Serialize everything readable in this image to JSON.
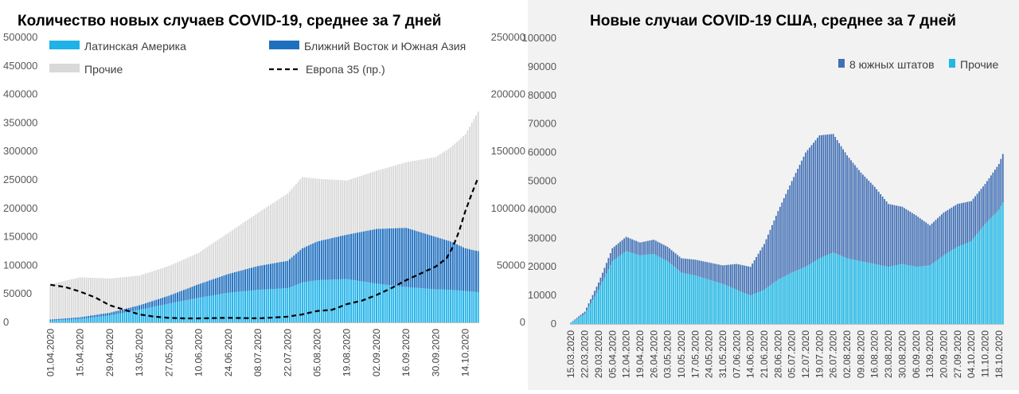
{
  "chart_data": [
    {
      "type": "bar",
      "title": "Количество новых случаев COVID-19, среднее за 7 дней",
      "stacked": true,
      "x_ticks": [
        "01.04.2020",
        "15.04.2020",
        "29.04.2020",
        "13.05.2020",
        "27.05.2020",
        "10.06.2020",
        "24.06.2020",
        "08.07.2020",
        "22.07.2020",
        "05.08.2020",
        "19.08.2020",
        "02.09.2020",
        "16.09.2020",
        "30.09.2020",
        "14.10.2020"
      ],
      "x_start": "01.04.2020",
      "x_end": "20.10.2020",
      "ylim": [
        0,
        500000
      ],
      "y_ticks": [
        0,
        50000,
        100000,
        150000,
        200000,
        250000,
        300000,
        350000,
        400000,
        450000,
        500000
      ],
      "y2lim": [
        0,
        250000
      ],
      "y2_ticks": [
        0,
        50000,
        100000,
        150000,
        200000,
        250000
      ],
      "legend": [
        "Латинская Америка",
        "Ближний Восток и Южная Азия",
        "Прочие",
        "Европа 35 (пр.)"
      ],
      "series": [
        {
          "name": "Латинская Америка",
          "color": "#1fb2e8",
          "axis": "left",
          "kind": "bar",
          "points": [
            [
              "01.04.2020",
              3000
            ],
            [
              "15.04.2020",
              6000
            ],
            [
              "29.04.2020",
              12000
            ],
            [
              "13.05.2020",
              22000
            ],
            [
              "27.05.2020",
              33000
            ],
            [
              "10.06.2020",
              43000
            ],
            [
              "24.06.2020",
              52000
            ],
            [
              "08.07.2020",
              57000
            ],
            [
              "22.07.2020",
              60000
            ],
            [
              "29.07.2020",
              70000
            ],
            [
              "05.08.2020",
              74000
            ],
            [
              "19.08.2020",
              76000
            ],
            [
              "02.09.2020",
              68000
            ],
            [
              "16.09.2020",
              62000
            ],
            [
              "30.09.2020",
              58000
            ],
            [
              "07.10.2020",
              57000
            ],
            [
              "14.10.2020",
              55000
            ],
            [
              "20.10.2020",
              53000
            ]
          ]
        },
        {
          "name": "Ближний Восток и Южная Азия",
          "color": "#1f6fbf",
          "axis": "left",
          "kind": "bar",
          "points": [
            [
              "01.04.2020",
              2000
            ],
            [
              "15.04.2020",
              3000
            ],
            [
              "29.04.2020",
              5000
            ],
            [
              "13.05.2020",
              8000
            ],
            [
              "27.05.2020",
              14000
            ],
            [
              "10.06.2020",
              24000
            ],
            [
              "24.06.2020",
              33000
            ],
            [
              "08.07.2020",
              42000
            ],
            [
              "22.07.2020",
              48000
            ],
            [
              "29.07.2020",
              60000
            ],
            [
              "05.08.2020",
              68000
            ],
            [
              "19.08.2020",
              78000
            ],
            [
              "02.09.2020",
              96000
            ],
            [
              "16.09.2020",
              104000
            ],
            [
              "30.09.2020",
              92000
            ],
            [
              "07.10.2020",
              85000
            ],
            [
              "14.10.2020",
              75000
            ],
            [
              "20.10.2020",
              72000
            ]
          ]
        },
        {
          "name": "Прочие",
          "color": "#d9d9d9",
          "axis": "left",
          "kind": "bar",
          "points": [
            [
              "01.04.2020",
              62000
            ],
            [
              "15.04.2020",
              70000
            ],
            [
              "29.04.2020",
              60000
            ],
            [
              "13.05.2020",
              52000
            ],
            [
              "27.05.2020",
              52000
            ],
            [
              "10.06.2020",
              55000
            ],
            [
              "24.06.2020",
              72000
            ],
            [
              "08.07.2020",
              93000
            ],
            [
              "22.07.2020",
              118000
            ],
            [
              "29.07.2020",
              125000
            ],
            [
              "05.08.2020",
              110000
            ],
            [
              "19.08.2020",
              95000
            ],
            [
              "02.09.2020",
              102000
            ],
            [
              "16.09.2020",
              115000
            ],
            [
              "30.09.2020",
              140000
            ],
            [
              "07.10.2020",
              165000
            ],
            [
              "14.10.2020",
              200000
            ],
            [
              "20.10.2020",
              245000
            ]
          ]
        },
        {
          "name": "Европа 35 (пр.)",
          "color": "#000000",
          "axis": "right",
          "kind": "line",
          "dash": true,
          "points": [
            [
              "01.04.2020",
              33000
            ],
            [
              "08.04.2020",
              31000
            ],
            [
              "15.04.2020",
              27000
            ],
            [
              "22.04.2020",
              22000
            ],
            [
              "29.04.2020",
              15000
            ],
            [
              "06.05.2020",
              11000
            ],
            [
              "13.05.2020",
              7000
            ],
            [
              "20.05.2020",
              5000
            ],
            [
              "27.05.2020",
              4000
            ],
            [
              "03.06.2020",
              3500
            ],
            [
              "10.06.2020",
              3500
            ],
            [
              "24.06.2020",
              4000
            ],
            [
              "08.07.2020",
              3500
            ],
            [
              "22.07.2020",
              5000
            ],
            [
              "29.07.2020",
              7000
            ],
            [
              "05.08.2020",
              10000
            ],
            [
              "12.08.2020",
              11000
            ],
            [
              "19.08.2020",
              16000
            ],
            [
              "26.08.2020",
              19000
            ],
            [
              "02.09.2020",
              24000
            ],
            [
              "09.09.2020",
              30000
            ],
            [
              "16.09.2020",
              37000
            ],
            [
              "23.09.2020",
              43000
            ],
            [
              "30.09.2020",
              49000
            ],
            [
              "05.10.2020",
              56000
            ],
            [
              "08.10.2020",
              66000
            ],
            [
              "11.10.2020",
              80000
            ],
            [
              "14.10.2020",
              98000
            ],
            [
              "17.10.2020",
              113000
            ],
            [
              "20.10.2020",
              127000
            ]
          ]
        }
      ]
    },
    {
      "type": "bar",
      "title": "Новые случаи COVID-19  США, среднее за 7 дней",
      "stacked": true,
      "x_ticks": [
        "15.03.2020",
        "22.03.2020",
        "29.03.2020",
        "05.04.2020",
        "12.04.2020",
        "19.04.2020",
        "26.04.2020",
        "03.05.2020",
        "10.05.2020",
        "17.05.2020",
        "24.05.2020",
        "31.05.2020",
        "07.06.2020",
        "14.06.2020",
        "21.06.2020",
        "28.06.2020",
        "05.07.2020",
        "12.07.2020",
        "19.07.2020",
        "26.07.2020",
        "02.08.2020",
        "09.08.2020",
        "16.08.2020",
        "23.08.2020",
        "30.08.2020",
        "06.09.2020",
        "13.09.2020",
        "20.09.2020",
        "27.09.2020",
        "04.10.2020",
        "11.10.2020",
        "18.10.2020"
      ],
      "x_start": "15.03.2020",
      "x_end": "20.10.2020",
      "ylim": [
        0,
        100000
      ],
      "y_ticks": [
        0,
        10000,
        20000,
        30000,
        40000,
        50000,
        60000,
        70000,
        80000,
        90000,
        100000
      ],
      "legend": [
        "8 южных штатов",
        "Прочие"
      ],
      "series": [
        {
          "name": "Прочие",
          "color": "#1fb8e6",
          "axis": "left",
          "kind": "bar",
          "points": [
            [
              "15.03.2020",
              400
            ],
            [
              "22.03.2020",
              3500
            ],
            [
              "29.03.2020",
              12000
            ],
            [
              "05.04.2020",
              22000
            ],
            [
              "12.04.2020",
              25500
            ],
            [
              "19.04.2020",
              24000
            ],
            [
              "26.04.2020",
              24500
            ],
            [
              "03.05.2020",
              22000
            ],
            [
              "10.05.2020",
              18000
            ],
            [
              "17.05.2020",
              17000
            ],
            [
              "24.05.2020",
              15500
            ],
            [
              "31.05.2020",
              14000
            ],
            [
              "07.06.2020",
              12000
            ],
            [
              "14.06.2020",
              10000
            ],
            [
              "21.06.2020",
              12000
            ],
            [
              "28.06.2020",
              15500
            ],
            [
              "05.07.2020",
              18000
            ],
            [
              "12.07.2020",
              20000
            ],
            [
              "19.07.2020",
              23000
            ],
            [
              "26.07.2020",
              25000
            ],
            [
              "02.08.2020",
              23000
            ],
            [
              "09.08.2020",
              22000
            ],
            [
              "16.08.2020",
              21000
            ],
            [
              "23.08.2020",
              20000
            ],
            [
              "30.08.2020",
              21000
            ],
            [
              "06.09.2020",
              20000
            ],
            [
              "13.09.2020",
              20500
            ],
            [
              "20.09.2020",
              24000
            ],
            [
              "27.09.2020",
              27000
            ],
            [
              "04.10.2020",
              29000
            ],
            [
              "11.10.2020",
              35000
            ],
            [
              "18.10.2020",
              40000
            ],
            [
              "20.10.2020",
              42500
            ]
          ]
        },
        {
          "name": "8 южных штатов",
          "color": "#4270b5",
          "axis": "left",
          "kind": "bar",
          "points": [
            [
              "15.03.2020",
              100
            ],
            [
              "22.03.2020",
              800
            ],
            [
              "29.03.2020",
              2500
            ],
            [
              "05.04.2020",
              4500
            ],
            [
              "12.04.2020",
              5000
            ],
            [
              "19.04.2020",
              4500
            ],
            [
              "26.04.2020",
              5000
            ],
            [
              "03.05.2020",
              5000
            ],
            [
              "10.05.2020",
              5000
            ],
            [
              "17.05.2020",
              5500
            ],
            [
              "24.05.2020",
              6000
            ],
            [
              "31.05.2020",
              6500
            ],
            [
              "07.06.2020",
              9000
            ],
            [
              "14.06.2020",
              10000
            ],
            [
              "21.06.2020",
              16000
            ],
            [
              "28.06.2020",
              24000
            ],
            [
              "05.07.2020",
              32000
            ],
            [
              "12.07.2020",
              40000
            ],
            [
              "19.07.2020",
              43000
            ],
            [
              "26.07.2020",
              41500
            ],
            [
              "02.08.2020",
              36000
            ],
            [
              "09.08.2020",
              31000
            ],
            [
              "16.08.2020",
              27000
            ],
            [
              "23.08.2020",
              22000
            ],
            [
              "30.08.2020",
              20000
            ],
            [
              "06.09.2020",
              18000
            ],
            [
              "13.09.2020",
              14000
            ],
            [
              "20.09.2020",
              15000
            ],
            [
              "27.09.2020",
              15000
            ],
            [
              "04.10.2020",
              14000
            ],
            [
              "11.10.2020",
              14000
            ],
            [
              "18.10.2020",
              16000
            ],
            [
              "20.10.2020",
              17000
            ]
          ]
        }
      ]
    }
  ]
}
